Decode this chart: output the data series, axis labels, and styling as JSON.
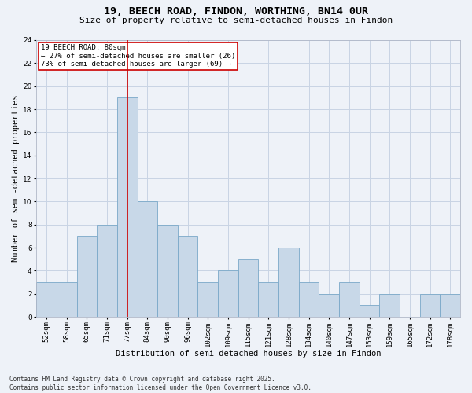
{
  "title": "19, BEECH ROAD, FINDON, WORTHING, BN14 0UR",
  "subtitle": "Size of property relative to semi-detached houses in Findon",
  "xlabel": "Distribution of semi-detached houses by size in Findon",
  "ylabel": "Number of semi-detached properties",
  "categories": [
    "52sqm",
    "58sqm",
    "65sqm",
    "71sqm",
    "77sqm",
    "84sqm",
    "90sqm",
    "96sqm",
    "102sqm",
    "109sqm",
    "115sqm",
    "121sqm",
    "128sqm",
    "134sqm",
    "140sqm",
    "147sqm",
    "153sqm",
    "159sqm",
    "165sqm",
    "172sqm",
    "178sqm"
  ],
  "values": [
    3,
    3,
    7,
    8,
    19,
    10,
    8,
    7,
    3,
    4,
    5,
    3,
    6,
    3,
    2,
    3,
    1,
    2,
    0,
    2,
    2
  ],
  "bar_color": "#c8d8e8",
  "bar_edge_color": "#7aa8c8",
  "highlight_bar_index": 4,
  "highlight_line_color": "#cc0000",
  "annotation_text": "19 BEECH ROAD: 80sqm\n← 27% of semi-detached houses are smaller (26)\n73% of semi-detached houses are larger (69) →",
  "annotation_box_color": "#ffffff",
  "annotation_box_edge_color": "#cc0000",
  "ylim": [
    0,
    24
  ],
  "yticks": [
    0,
    2,
    4,
    6,
    8,
    10,
    12,
    14,
    16,
    18,
    20,
    22,
    24
  ],
  "grid_color": "#c8d4e4",
  "background_color": "#eef2f8",
  "footer_text": "Contains HM Land Registry data © Crown copyright and database right 2025.\nContains public sector information licensed under the Open Government Licence v3.0.",
  "title_fontsize": 9.5,
  "subtitle_fontsize": 8,
  "axis_label_fontsize": 7.5,
  "tick_fontsize": 6.5,
  "annotation_fontsize": 6.5,
  "footer_fontsize": 5.5
}
